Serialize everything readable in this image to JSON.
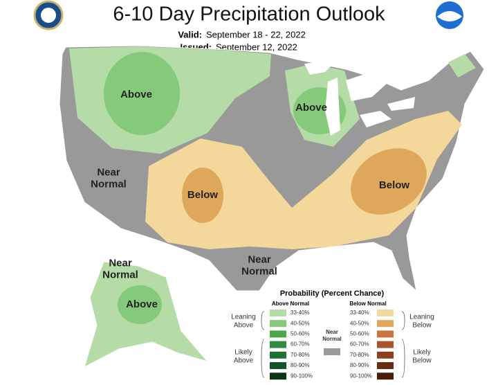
{
  "header": {
    "title": "6-10 Day Precipitation Outlook",
    "valid_label": "Valid:",
    "valid": "September 18 - 22, 2022",
    "issued_label": "Issued:",
    "issued": "September 12, 2022"
  },
  "map_labels": [
    {
      "lines": [
        "Above"
      ]
    },
    {
      "lines": [
        "Above"
      ]
    },
    {
      "lines": [
        "Near",
        "Normal"
      ]
    },
    {
      "lines": [
        "Below"
      ]
    },
    {
      "lines": [
        "Below"
      ]
    },
    {
      "lines": [
        "Near",
        "Normal"
      ]
    },
    {
      "lines": [
        "Near",
        "Normal"
      ]
    },
    {
      "lines": [
        "Above"
      ]
    }
  ],
  "legend": {
    "title": "Probability (Percent Chance)",
    "above_header": "Above Normal",
    "below_header": "Below Normal",
    "near_normal": {
      "lines": [
        "Near",
        "Normal"
      ],
      "color": "#999999"
    },
    "leaning_above": [
      "Leaning",
      "Above"
    ],
    "likely_above": [
      "Likely",
      "Above"
    ],
    "leaning_below": [
      "Leaning",
      "Below"
    ],
    "likely_below": [
      "Likely",
      "Below"
    ],
    "above": [
      {
        "label": "33-40%",
        "color": "#b5dca6"
      },
      {
        "label": "40-50%",
        "color": "#85c97a"
      },
      {
        "label": "50-60%",
        "color": "#4aa84a"
      },
      {
        "label": "60-70%",
        "color": "#2f8c40"
      },
      {
        "label": "70-80%",
        "color": "#1f7033"
      },
      {
        "label": "80-90%",
        "color": "#135426"
      },
      {
        "label": "90-100%",
        "color": "#0a3514"
      }
    ],
    "below": [
      {
        "label": "33-40%",
        "color": "#f4d79a"
      },
      {
        "label": "40-50%",
        "color": "#dea75a"
      },
      {
        "label": "50-60%",
        "color": "#c8743c"
      },
      {
        "label": "60-70%",
        "color": "#a8552c"
      },
      {
        "label": "70-80%",
        "color": "#8b4020"
      },
      {
        "label": "80-90%",
        "color": "#6c2c14"
      },
      {
        "label": "90-100%",
        "color": "#4a1c0a"
      }
    ]
  }
}
